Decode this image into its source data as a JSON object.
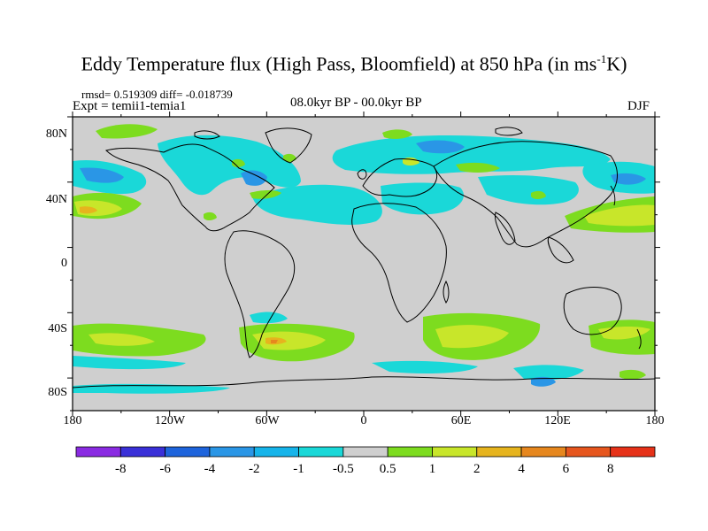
{
  "title": {
    "main": "Eddy Temperature flux (High Pass, Bloomfield) at 850 hPa (in ms",
    "sup": "-1",
    "tail": "K)"
  },
  "stats_text": "rmsd= 0.519309 diff= -0.018739",
  "expt_text": "Expt = temii1-temia1",
  "period_text": "08.0kyr BP - 00.0kyr BP",
  "season_text": "DJF",
  "lat_labels": [
    "80N",
    "40N",
    "0",
    "40S",
    "80S"
  ],
  "lon_labels": [
    "180",
    "120W",
    "60W",
    "0",
    "60E",
    "120E",
    "180"
  ],
  "colorbar": {
    "labels": [
      "-8",
      "-6",
      "-4",
      "-2",
      "-1",
      "-0.5",
      "0.5",
      "1",
      "2",
      "4",
      "6",
      "8"
    ],
    "colors": [
      "#8a2be2",
      "#3a30d8",
      "#1e64dc",
      "#2a96e6",
      "#16b4ea",
      "#1ad8d8",
      "#cfcfcf",
      "#7ddc1f",
      "#c8e62a",
      "#e6b41e",
      "#e6871e",
      "#e6561e",
      "#e63219"
    ]
  },
  "map_colors": {
    "ocean_land_background": "#cfcfcf",
    "coast": "#000000"
  }
}
